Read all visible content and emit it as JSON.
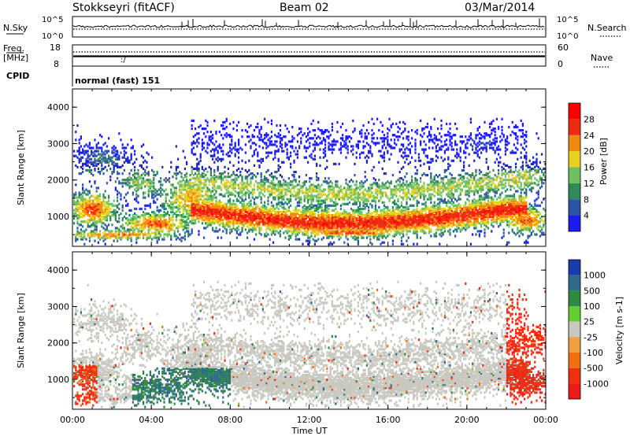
{
  "header": {
    "station": "Stokkseyri (fitACF)",
    "beam": "Beam 02",
    "date": "03/Mar/2014"
  },
  "noise_panel": {
    "left_label": "N.Sky",
    "right_label": "N.Search",
    "left_ticks": [
      "10^5",
      "10^0"
    ],
    "right_ticks": [
      "10^5",
      "10^0"
    ]
  },
  "freq_panel": {
    "left_label_1": "Freq.",
    "left_label_2": "[MHz]",
    "left_ticks": [
      "18",
      "8"
    ],
    "right_label": "Nave",
    "right_ticks": [
      "60",
      "0"
    ]
  },
  "cpid_panel": {
    "label": "CPID",
    "value": "normal (fast) 151"
  },
  "chart_data": [
    {
      "type": "heatmap",
      "name": "power",
      "ylabel": "Slant Range [km]",
      "ylim": [
        180,
        4500
      ],
      "xlim": [
        0,
        24
      ],
      "yticks": [
        "1000",
        "2000",
        "3000",
        "4000"
      ],
      "colorbar": {
        "label": "Power [dB]",
        "ticks": [
          "4",
          "8",
          "12",
          "16",
          "20",
          "24",
          "28"
        ],
        "colors": [
          "#1c1cf0",
          "#2c55a8",
          "#2e8a58",
          "#6ec060",
          "#e8d020",
          "#f08a10",
          "#ee2a10",
          "#ff0000"
        ]
      }
    },
    {
      "type": "heatmap",
      "name": "velocity",
      "ylabel": "Slant Range [km]",
      "ylim": [
        180,
        4500
      ],
      "xlim": [
        0,
        24
      ],
      "yticks": [
        "1000",
        "2000",
        "3000",
        "4000"
      ],
      "colorbar": {
        "label": "Velocity [m s-1]",
        "ticks": [
          "1000",
          "500",
          "100",
          "25",
          "-25",
          "-100",
          "-500",
          "-1000"
        ],
        "colors": [
          "#1a3ab0",
          "#2e6a8a",
          "#2e8a3e",
          "#66cc33",
          "#c8c8c0",
          "#f0a040",
          "#f07010",
          "#ee3010",
          "#ee1a1a"
        ]
      }
    }
  ],
  "xaxis": {
    "label": "Time UT",
    "ticks": [
      "00:00",
      "04:00",
      "08:00",
      "12:00",
      "16:00",
      "20:00",
      "00:00"
    ]
  }
}
